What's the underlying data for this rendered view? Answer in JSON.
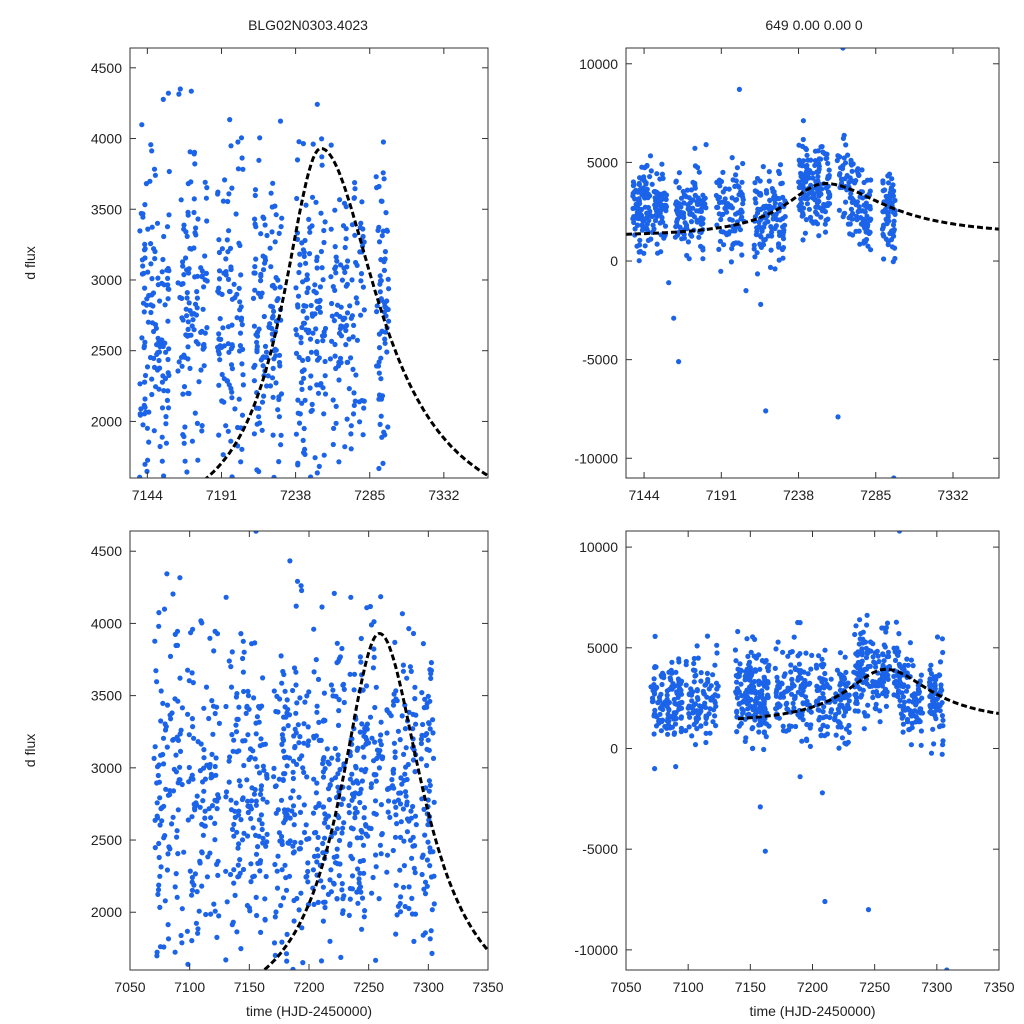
{
  "title_left": "BLG02N0303.4023",
  "title_right": "649  0.00  0.00  0",
  "colors": {
    "points": "#1b63e8",
    "model": "#000000"
  },
  "chart_data": [
    {
      "type": "scatter",
      "name": "top-left",
      "xlim": [
        7133,
        7360
      ],
      "ylim": [
        1600,
        4640
      ],
      "xticks": [
        7144,
        7191,
        7238,
        7285,
        7332
      ],
      "yticks": [
        2000,
        2500,
        3000,
        3500,
        4000,
        4500
      ],
      "ylabel": "d flux",
      "xlabel": "",
      "model": {
        "t0": 7254,
        "peak": 3930,
        "base": 1200,
        "rise": 30,
        "decay": 45
      },
      "clusters": [
        [
          7139,
          7158,
          140
        ],
        [
          7163,
          7182,
          120
        ],
        [
          7188,
          7205,
          110
        ],
        [
          7211,
          7230,
          130
        ],
        [
          7238,
          7257,
          140
        ],
        [
          7260,
          7282,
          120
        ],
        [
          7289,
          7297,
          70
        ]
      ],
      "ydist": {
        "center": 2700,
        "spread": 1100,
        "min": 1600,
        "max": 4640
      },
      "series": [
        {
          "name": "data",
          "values": "see clusters"
        },
        {
          "name": "model",
          "values": "dashed fit"
        }
      ]
    },
    {
      "type": "scatter",
      "name": "top-right",
      "xlim": [
        7133,
        7360
      ],
      "ylim": [
        -11000,
        10800
      ],
      "xticks": [
        7144,
        7191,
        7238,
        7285,
        7332
      ],
      "yticks": [
        10000,
        5000,
        0,
        -5000,
        -10000
      ],
      "ylabel": "",
      "xlabel": "",
      "model": {
        "t0": 7254,
        "peak": 3930,
        "base": 1200,
        "rise": 30,
        "decay": 45
      },
      "clusters": [
        [
          7137,
          7158,
          160
        ],
        [
          7163,
          7182,
          110
        ],
        [
          7188,
          7205,
          90
        ],
        [
          7211,
          7230,
          120
        ],
        [
          7238,
          7257,
          150
        ],
        [
          7261,
          7282,
          120
        ],
        [
          7289,
          7297,
          70
        ]
      ],
      "ydist": {
        "center": 2800,
        "spread": 1500,
        "min": -11000,
        "max": 10800
      },
      "outliers": [
        [
          7162,
          -2900
        ],
        [
          7165,
          -5100
        ],
        [
          7218,
          -7600
        ],
        [
          7262,
          -7900
        ],
        [
          7215,
          -2200
        ],
        [
          7206,
          -1500
        ],
        [
          7159,
          -1100
        ],
        [
          7296,
          -11000
        ],
        [
          7265,
          10800
        ],
        [
          7202,
          8700
        ]
      ],
      "series": [
        {
          "name": "data",
          "values": "see clusters"
        },
        {
          "name": "model",
          "values": "dashed fit"
        }
      ]
    },
    {
      "type": "scatter",
      "name": "bottom-left",
      "xlim": [
        7050,
        7350
      ],
      "ylim": [
        1600,
        4640
      ],
      "xticks": [
        7050,
        7100,
        7150,
        7200,
        7250,
        7300,
        7350
      ],
      "yticks": [
        2000,
        2500,
        3000,
        3500,
        4000,
        4500
      ],
      "ylabel": "d flux",
      "xlabel": "time (HJD-2450000)",
      "model": {
        "t0": 7259,
        "peak": 3930,
        "base": 1200,
        "rise": 40,
        "decay": 45
      },
      "clusters": [
        [
          7070,
          7095,
          110
        ],
        [
          7098,
          7125,
          110
        ],
        [
          7130,
          7165,
          160
        ],
        [
          7170,
          7200,
          150
        ],
        [
          7203,
          7230,
          140
        ],
        [
          7233,
          7262,
          150
        ],
        [
          7265,
          7290,
          120
        ],
        [
          7294,
          7305,
          70
        ]
      ],
      "ydist": {
        "center": 2800,
        "spread": 1100,
        "min": 1600,
        "max": 4640
      },
      "series": [
        {
          "name": "data",
          "values": "see clusters"
        },
        {
          "name": "model",
          "values": "dashed fit"
        }
      ]
    },
    {
      "type": "scatter",
      "name": "bottom-right",
      "xlim": [
        7050,
        7350
      ],
      "ylim": [
        -11000,
        10800
      ],
      "xticks": [
        7050,
        7100,
        7150,
        7200,
        7250,
        7300,
        7350
      ],
      "yticks": [
        10000,
        5000,
        0,
        -5000,
        -10000
      ],
      "ylabel": "",
      "xlabel": "time (HJD-2450000)",
      "model": {
        "t0": 7259,
        "peak": 3930,
        "base": 1200,
        "rise": 40,
        "decay": 45,
        "start": 7140
      },
      "clusters": [
        [
          7070,
          7095,
          120
        ],
        [
          7098,
          7125,
          100
        ],
        [
          7138,
          7165,
          170
        ],
        [
          7170,
          7200,
          120
        ],
        [
          7203,
          7230,
          120
        ],
        [
          7233,
          7262,
          150
        ],
        [
          7265,
          7290,
          120
        ],
        [
          7294,
          7305,
          70
        ]
      ],
      "ydist": {
        "center": 2900,
        "spread": 1500,
        "min": -11000,
        "max": 10800
      },
      "outliers": [
        [
          7073,
          -1000
        ],
        [
          7090,
          -900
        ],
        [
          7158,
          -2900
        ],
        [
          7162,
          -5100
        ],
        [
          7210,
          -7600
        ],
        [
          7245,
          -8000
        ],
        [
          7208,
          -2200
        ],
        [
          7190,
          -1400
        ],
        [
          7308,
          -11000
        ],
        [
          7270,
          10800
        ]
      ],
      "series": [
        {
          "name": "data",
          "values": "see clusters"
        },
        {
          "name": "model",
          "values": "dashed fit"
        }
      ]
    }
  ]
}
